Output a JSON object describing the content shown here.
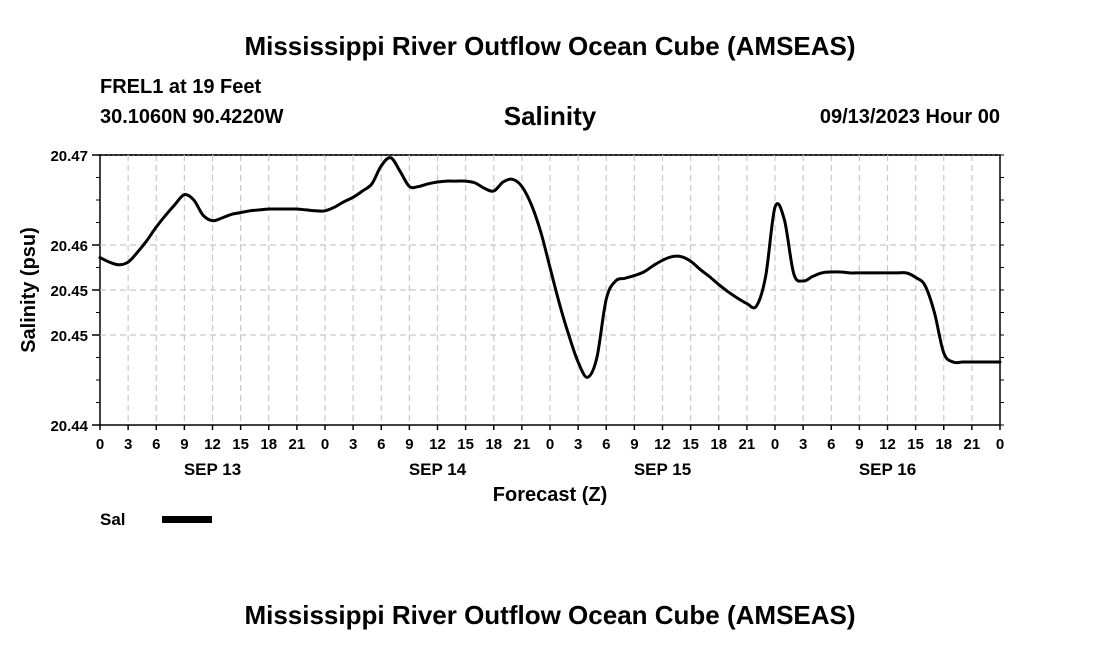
{
  "header": {
    "title": "Mississippi River Outflow Ocean Cube (AMSEAS)",
    "station": "FREL1 at 19 Feet",
    "coordinates": "30.1060N  90.4220W",
    "variable": "Salinity",
    "datetime": "09/13/2023 Hour 00"
  },
  "footer": {
    "title": "Mississippi River Outflow Ocean Cube (AMSEAS)"
  },
  "legend": {
    "label": "Sal",
    "color": "#000000"
  },
  "chart_data": {
    "type": "line",
    "title": "Salinity",
    "xlabel": "Forecast (Z)",
    "ylabel": "Salinity (psu)",
    "xlim": [
      0,
      96
    ],
    "ylim": [
      20.44,
      20.47
    ],
    "ytick_values": [
      20.44,
      20.45,
      20.455,
      20.46,
      20.47
    ],
    "ytick_labels": [
      "20.44",
      "20.45",
      "20.45",
      "20.46",
      "20.47"
    ],
    "xtick_labels": [
      "0",
      "3",
      "6",
      "9",
      "12",
      "15",
      "18",
      "21",
      "0",
      "3",
      "6",
      "9",
      "12",
      "15",
      "18",
      "21",
      "0",
      "3",
      "6",
      "9",
      "12",
      "15",
      "18",
      "21",
      "0",
      "3",
      "6",
      "9",
      "12",
      "15",
      "18",
      "21",
      "0"
    ],
    "date_labels": [
      {
        "text": "SEP 13",
        "hour": 12
      },
      {
        "text": "SEP 14",
        "hour": 36
      },
      {
        "text": "SEP 15",
        "hour": 60
      },
      {
        "text": "SEP 16",
        "hour": 84
      }
    ],
    "grid": true,
    "legend_position": "bottom-left",
    "series": [
      {
        "name": "Sal",
        "color": "#000000",
        "x": [
          0,
          1,
          2,
          3,
          4,
          5,
          6,
          7,
          8,
          9,
          10,
          11,
          12,
          13,
          14,
          15,
          16,
          17,
          18,
          19,
          20,
          21,
          22,
          23,
          24,
          25,
          26,
          27,
          28,
          29,
          30,
          31,
          32,
          33,
          34,
          35,
          36,
          37,
          38,
          39,
          40,
          41,
          42,
          43,
          44,
          45,
          46,
          47,
          48,
          49,
          50,
          51,
          52,
          53,
          54,
          55,
          56,
          57,
          58,
          59,
          60,
          61,
          62,
          63,
          64,
          65,
          66,
          67,
          68,
          69,
          70,
          71,
          72,
          73,
          74,
          75,
          76,
          77,
          78,
          79,
          80,
          81,
          82,
          83,
          84,
          85,
          86,
          87,
          88,
          89,
          90,
          91,
          92,
          93,
          94,
          95,
          96
        ],
        "values": [
          20.4586,
          20.4581,
          20.4578,
          20.4581,
          20.4592,
          20.4605,
          20.462,
          20.4633,
          20.4645,
          20.4656,
          20.465,
          20.4633,
          20.4627,
          20.463,
          20.4634,
          20.4636,
          20.4638,
          20.4639,
          20.464,
          20.464,
          20.464,
          20.464,
          20.4639,
          20.4638,
          20.4638,
          20.4642,
          20.4648,
          20.4653,
          20.466,
          20.4668,
          20.4688,
          20.4697,
          20.4682,
          20.4665,
          20.4665,
          20.4668,
          20.467,
          20.4671,
          20.4671,
          20.4671,
          20.4669,
          20.4663,
          20.466,
          20.467,
          20.4673,
          20.4665,
          20.4645,
          20.4615,
          20.4575,
          20.4535,
          20.45,
          20.447,
          20.4453,
          20.4475,
          20.454,
          20.456,
          20.4563,
          20.4566,
          20.457,
          20.4577,
          20.4583,
          20.4587,
          20.4587,
          20.4582,
          20.4573,
          20.4565,
          20.4556,
          20.4548,
          20.4541,
          20.4535,
          20.4532,
          20.4565,
          20.4642,
          20.4628,
          20.4568,
          20.456,
          20.4565,
          20.4569,
          20.457,
          20.457,
          20.4569,
          20.4569,
          20.4569,
          20.4569,
          20.4569,
          20.4569,
          20.4569,
          20.4564,
          20.4555,
          20.4525,
          20.448,
          20.447,
          20.447,
          20.447,
          20.447,
          20.447,
          20.447
        ]
      }
    ]
  }
}
